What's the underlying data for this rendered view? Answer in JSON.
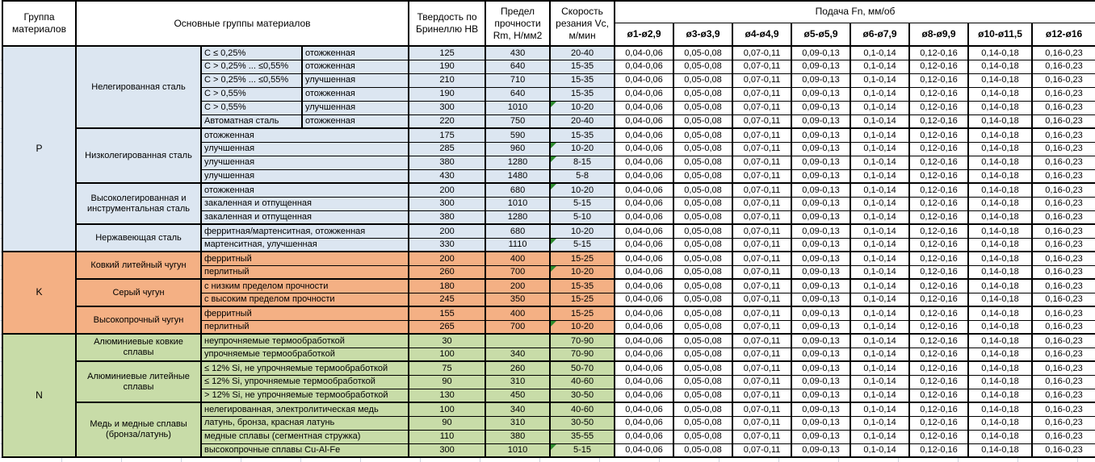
{
  "header": {
    "group": "Группа материалов",
    "main_groups": "Основные группы материалов",
    "hardness": "Твердость по Бринеллю HB",
    "strength": "Предел прочности Rm, Н/мм2",
    "speed": "Скорость резания Vc, м/мин",
    "feed": "Подача Fn, мм/об",
    "diameters": [
      "ø1-ø2,9",
      "ø3-ø3,9",
      "ø4-ø4,9",
      "ø5-ø5,9",
      "ø6-ø7,9",
      "ø8-ø9,9",
      "ø10-ø11,5",
      "ø12-ø16"
    ]
  },
  "feed_values": [
    "0,04-0,06",
    "0,05-0,08",
    "0,07-0,11",
    "0,09-0,13",
    "0,1-0,14",
    "0,12-0,16",
    "0,14-0,18",
    "0,16-0,23"
  ],
  "colors": {
    "group_p": "#DCE6F1",
    "group_k": "#F4B084",
    "group_n": "#C8DCA8",
    "marker": "#2E8B2E",
    "border": "#000000",
    "gridline": "#C8D2E0"
  },
  "groups": [
    {
      "letter": "P",
      "color": "#DCE6F1",
      "subgroups": [
        {
          "name": "Нелегированная сталь",
          "rows": [
            {
              "prop": "C ≤ 0,25%",
              "cond": "отожженная",
              "hb": "125",
              "rm": "430",
              "vc": "20-40",
              "marker": false
            },
            {
              "prop": "C > 0,25% ... ≤0,55%",
              "cond": "отожженная",
              "hb": "190",
              "rm": "640",
              "vc": "15-35",
              "marker": false
            },
            {
              "prop": "C > 0,25% ... ≤0,55%",
              "cond": "улучшенная",
              "hb": "210",
              "rm": "710",
              "vc": "15-35",
              "marker": false
            },
            {
              "prop": "C > 0,55%",
              "cond": "отожженная",
              "hb": "190",
              "rm": "640",
              "vc": "15-35",
              "marker": false
            },
            {
              "prop": "C > 0,55%",
              "cond": "улучшенная",
              "hb": "300",
              "rm": "1010",
              "vc": "10-20",
              "marker": true
            },
            {
              "prop": "Автоматная сталь",
              "cond": "отожженная",
              "hb": "220",
              "rm": "750",
              "vc": "20-40",
              "marker": false
            }
          ]
        },
        {
          "name": "Низколегированная сталь",
          "rows": [
            {
              "prop": "отожженная",
              "hb": "175",
              "rm": "590",
              "vc": "15-35",
              "marker": false
            },
            {
              "prop": "улучшенная",
              "hb": "285",
              "rm": "960",
              "vc": "10-20",
              "marker": true
            },
            {
              "prop": "улучшенная",
              "hb": "380",
              "rm": "1280",
              "vc": "8-15",
              "marker": true
            },
            {
              "prop": "улучшенная",
              "hb": "430",
              "rm": "1480",
              "vc": "5-8",
              "marker": false
            }
          ]
        },
        {
          "name": "Высоколегированная и инструментальная сталь",
          "rows": [
            {
              "prop": "отожженная",
              "hb": "200",
              "rm": "680",
              "vc": "10-20",
              "marker": true
            },
            {
              "prop": "закаленная и отпущенная",
              "hb": "300",
              "rm": "1010",
              "vc": "5-15",
              "marker": false
            },
            {
              "prop": "закаленная и отпущенная",
              "hb": "380",
              "rm": "1280",
              "vc": "5-10",
              "marker": false
            }
          ]
        },
        {
          "name": "Нержавеющая сталь",
          "rows": [
            {
              "prop": "ферритная/мартенситная, отожженная",
              "hb": "200",
              "rm": "680",
              "vc": "10-20",
              "marker": false
            },
            {
              "prop": "мартенситная, улучшенная",
              "hb": "330",
              "rm": "1110",
              "vc": "5-15",
              "marker": true
            }
          ]
        }
      ]
    },
    {
      "letter": "K",
      "color": "#F4B084",
      "subgroups": [
        {
          "name": "Ковкий литейный чугун",
          "rows": [
            {
              "prop": "ферритный",
              "hb": "200",
              "rm": "400",
              "vc": "15-25",
              "marker": false
            },
            {
              "prop": "перлитный",
              "hb": "260",
              "rm": "700",
              "vc": "10-20",
              "marker": true
            }
          ]
        },
        {
          "name": "Серый чугун",
          "rows": [
            {
              "prop": "с низким пределом прочности",
              "hb": "180",
              "rm": "200",
              "vc": "15-35",
              "marker": false
            },
            {
              "prop": "с высоким пределом прочности",
              "hb": "245",
              "rm": "350",
              "vc": "15-25",
              "marker": false
            }
          ]
        },
        {
          "name": "Высокопрочный чугун",
          "rows": [
            {
              "prop": "ферритный",
              "hb": "155",
              "rm": "400",
              "vc": "15-25",
              "marker": false
            },
            {
              "prop": "перлитный",
              "hb": "265",
              "rm": "700",
              "vc": "10-20",
              "marker": true
            }
          ]
        }
      ]
    },
    {
      "letter": "N",
      "color": "#C8DCA8",
      "subgroups": [
        {
          "name": "Алюминиевые ковкие сплавы",
          "rows": [
            {
              "prop": "неупрочняемые термообработкой",
              "hb": "30",
              "rm": "",
              "vc": "70-90",
              "marker": false
            },
            {
              "prop": "упрочняемые термообработкой",
              "hb": "100",
              "rm": "340",
              "vc": "70-90",
              "marker": false
            }
          ]
        },
        {
          "name": "Алюминиевые литейные сплавы",
          "rows": [
            {
              "prop": "≤ 12% Si, не упрочняемые термообработкой",
              "hb": "75",
              "rm": "260",
              "vc": "50-70",
              "marker": false
            },
            {
              "prop": "≤ 12% Si, упрочняемые термообработкой",
              "hb": "90",
              "rm": "310",
              "vc": "40-60",
              "marker": false
            },
            {
              "prop": "> 12% Si, не упрочняемые термообработкой",
              "hb": "130",
              "rm": "450",
              "vc": "30-50",
              "marker": false
            }
          ]
        },
        {
          "name": "Медь и медные сплавы (бронза/латунь)",
          "rows": [
            {
              "prop": "нелегированная, электролитическая медь",
              "hb": "100",
              "rm": "340",
              "vc": "40-60",
              "marker": false
            },
            {
              "prop": "латунь, бронза, красная латунь",
              "hb": "90",
              "rm": "310",
              "vc": "30-50",
              "marker": false
            },
            {
              "prop": "медные сплавы (сегментная стружка)",
              "hb": "110",
              "rm": "380",
              "vc": "35-55",
              "marker": false
            },
            {
              "prop": "высокопрочные сплавы Cu-Al-Fe",
              "hb": "300",
              "rm": "1010",
              "vc": "5-15",
              "marker": true
            }
          ]
        }
      ]
    }
  ]
}
